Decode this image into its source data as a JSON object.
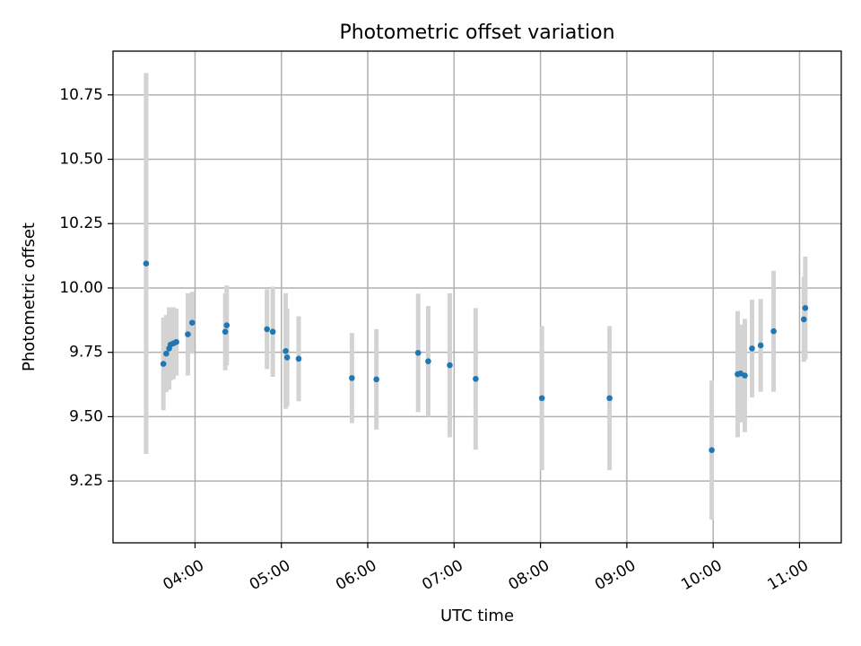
{
  "chart_data": {
    "type": "scatter",
    "title": "Photometric offset variation",
    "xlabel": "UTC time",
    "ylabel": "Photometric offset",
    "x_axis": "time",
    "xlim": [
      "03:03",
      "11:29"
    ],
    "ylim": [
      9.01,
      10.92
    ],
    "xticks": [
      "04:00",
      "05:00",
      "06:00",
      "07:00",
      "08:00",
      "09:00",
      "10:00",
      "11:00"
    ],
    "yticks": [
      9.25,
      9.5,
      9.75,
      10.0,
      10.25,
      10.5,
      10.75
    ],
    "ytick_labels": [
      "9.25",
      "9.50",
      "9.75",
      "10.00",
      "10.25",
      "10.50",
      "10.75"
    ],
    "grid": true,
    "colors": {
      "marker": "#1f77b4",
      "errorbar": "#d3d3d3"
    },
    "points": [
      {
        "x": "03:26",
        "y": 10.095,
        "err": 0.74
      },
      {
        "x": "03:38",
        "y": 9.705,
        "err": 0.18
      },
      {
        "x": "03:40",
        "y": 9.745,
        "err": 0.15
      },
      {
        "x": "03:42",
        "y": 9.765,
        "err": 0.16
      },
      {
        "x": "03:43",
        "y": 9.78,
        "err": 0.14
      },
      {
        "x": "03:45",
        "y": 9.785,
        "err": 0.14
      },
      {
        "x": "03:47",
        "y": 9.79,
        "err": 0.13
      },
      {
        "x": "03:55",
        "y": 9.82,
        "err": 0.16
      },
      {
        "x": "03:58",
        "y": 9.865,
        "err": 0.12
      },
      {
        "x": "04:21",
        "y": 9.83,
        "err": 0.15
      },
      {
        "x": "04:22",
        "y": 9.855,
        "err": 0.155
      },
      {
        "x": "04:50",
        "y": 9.84,
        "err": 0.155
      },
      {
        "x": "04:54",
        "y": 9.83,
        "err": 0.175
      },
      {
        "x": "05:03",
        "y": 9.755,
        "err": 0.225
      },
      {
        "x": "05:04",
        "y": 9.73,
        "err": 0.19
      },
      {
        "x": "05:12",
        "y": 9.725,
        "err": 0.165
      },
      {
        "x": "05:49",
        "y": 9.65,
        "err": 0.175
      },
      {
        "x": "06:06",
        "y": 9.645,
        "err": 0.195
      },
      {
        "x": "06:35",
        "y": 9.748,
        "err": 0.23
      },
      {
        "x": "06:42",
        "y": 9.715,
        "err": 0.215
      },
      {
        "x": "06:57",
        "y": 9.7,
        "err": 0.28
      },
      {
        "x": "07:15",
        "y": 9.647,
        "err": 0.275
      },
      {
        "x": "08:01",
        "y": 9.572,
        "err": 0.28
      },
      {
        "x": "08:48",
        "y": 9.572,
        "err": 0.28
      },
      {
        "x": "09:59",
        "y": 9.37,
        "err": 0.27
      },
      {
        "x": "10:17",
        "y": 9.665,
        "err": 0.245
      },
      {
        "x": "10:19",
        "y": 9.668,
        "err": 0.19
      },
      {
        "x": "10:22",
        "y": 9.66,
        "err": 0.22
      },
      {
        "x": "10:27",
        "y": 9.765,
        "err": 0.19
      },
      {
        "x": "10:33",
        "y": 9.777,
        "err": 0.18
      },
      {
        "x": "10:42",
        "y": 9.832,
        "err": 0.235
      },
      {
        "x": "11:03",
        "y": 9.878,
        "err": 0.165
      },
      {
        "x": "11:04",
        "y": 9.922,
        "err": 0.2
      }
    ]
  }
}
